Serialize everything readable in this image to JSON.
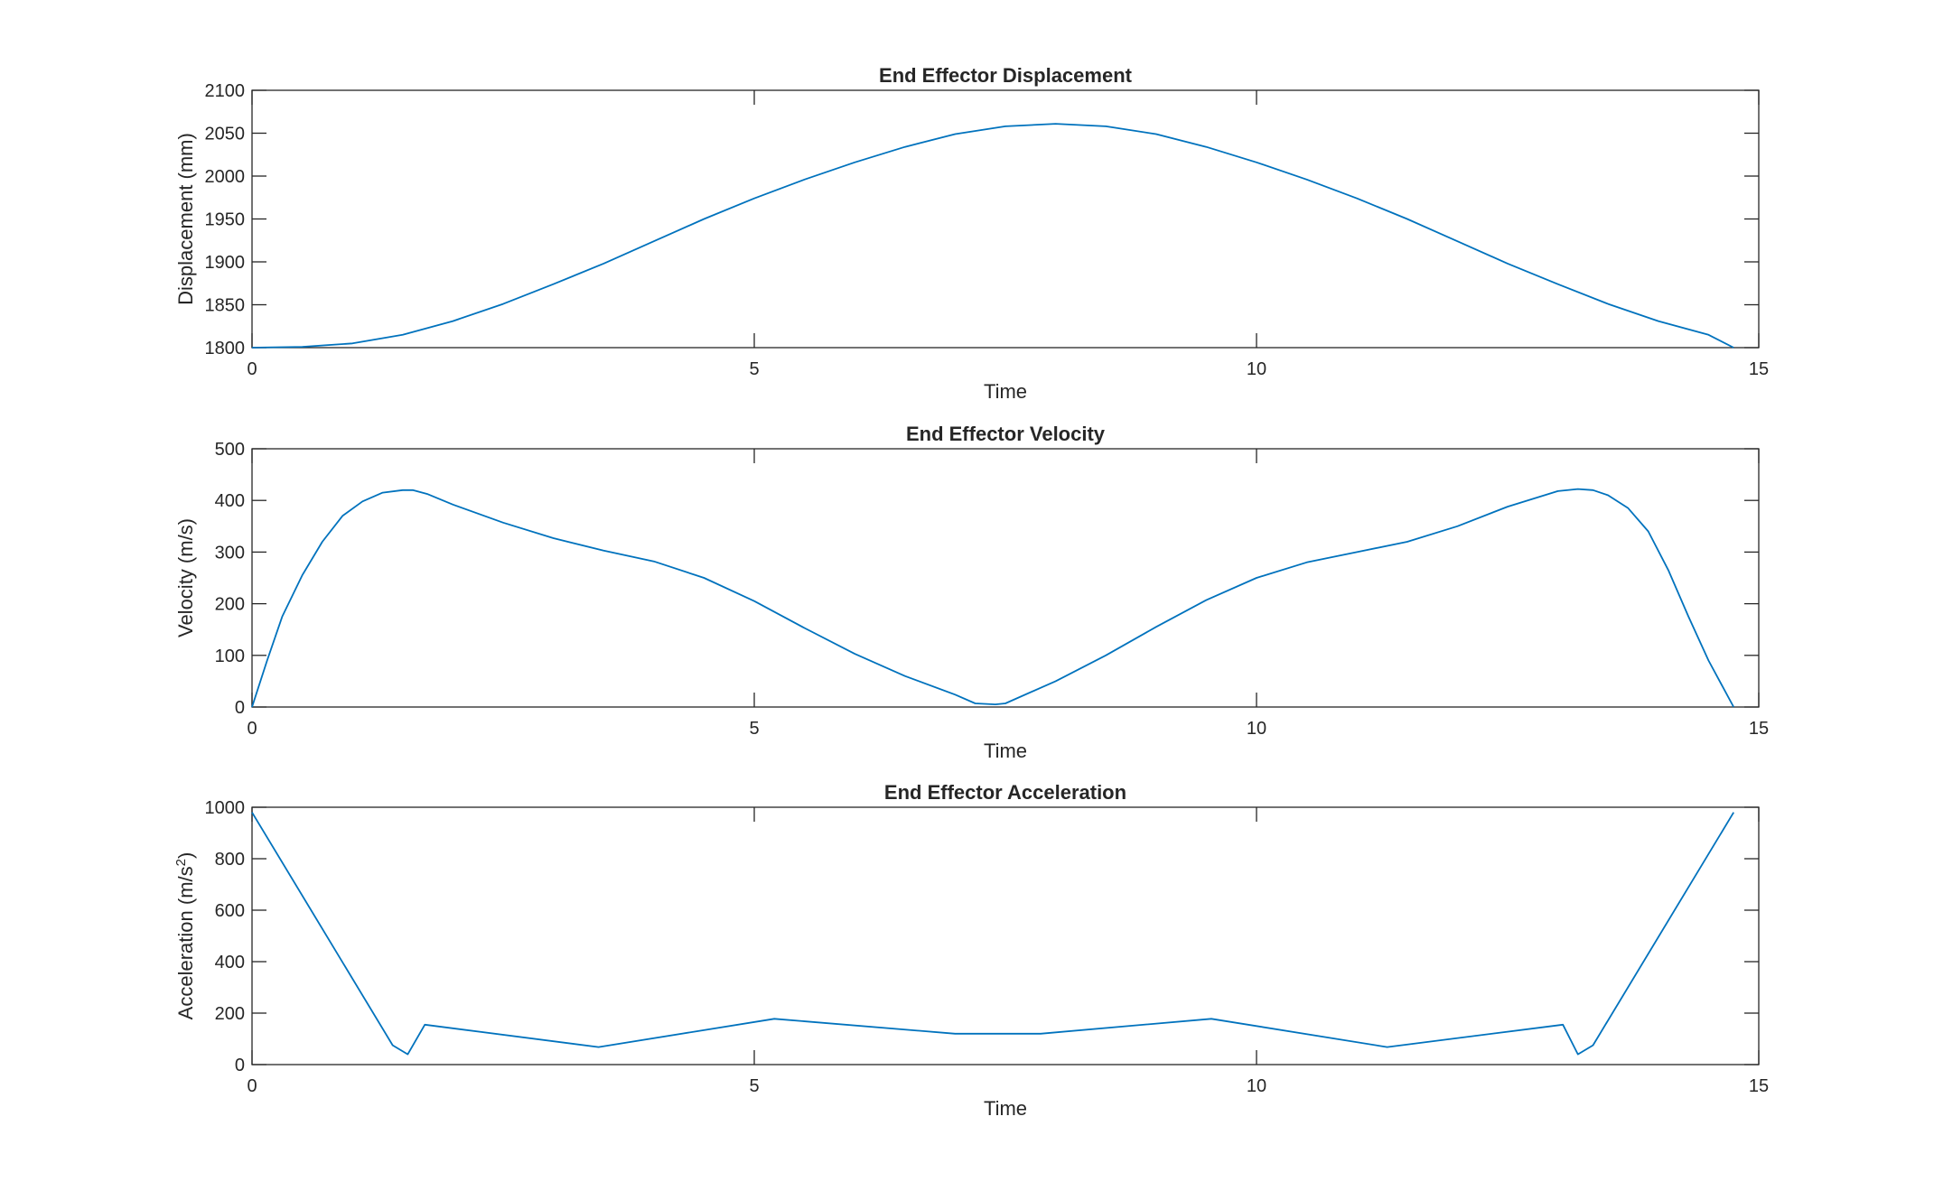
{
  "figure": {
    "line_color": "#0072BD",
    "axis_color": "#262626",
    "background": "#ffffff"
  },
  "chart_data": [
    {
      "type": "line",
      "title": "End Effector Displacement",
      "xlabel": "Time",
      "ylabel": "Displacement (mm)",
      "ylabel_sup": "",
      "ylabel_tail": "",
      "xlim": [
        0,
        15
      ],
      "ylim": [
        1800,
        2100
      ],
      "xticks": [
        0,
        5,
        10,
        15
      ],
      "yticks": [
        1800,
        1850,
        1900,
        1950,
        2000,
        2050,
        2100
      ],
      "grid": false,
      "series": [
        {
          "x": [
            0,
            0.5,
            1.0,
            1.5,
            2.0,
            2.5,
            3.0,
            3.5,
            4.0,
            4.5,
            5.0,
            5.5,
            6.0,
            6.5,
            7.0,
            7.5,
            8.0,
            8.5,
            9.0,
            9.5,
            10.0,
            10.5,
            11.0,
            11.5,
            12.0,
            12.5,
            13.0,
            13.5,
            14.0,
            14.5,
            14.75
          ],
          "y": [
            1800,
            1801,
            1805,
            1815,
            1831,
            1851,
            1874,
            1898,
            1924,
            1950,
            1974,
            1996,
            2016,
            2034,
            2049,
            2058,
            2061,
            2058,
            2049,
            2034,
            2016,
            1996,
            1974,
            1950,
            1924,
            1898,
            1874,
            1851,
            1831,
            1815,
            1800
          ]
        }
      ]
    },
    {
      "type": "line",
      "title": "End Effector Velocity",
      "xlabel": "Time",
      "ylabel": "Velocity (m/s)",
      "ylabel_sup": "",
      "ylabel_tail": "",
      "xlim": [
        0,
        15
      ],
      "ylim": [
        0,
        500
      ],
      "xticks": [
        0,
        5,
        10,
        15
      ],
      "yticks": [
        0,
        100,
        200,
        300,
        400,
        500
      ],
      "grid": false,
      "series": [
        {
          "x": [
            0,
            0.15,
            0.3,
            0.5,
            0.7,
            0.9,
            1.1,
            1.3,
            1.5,
            1.6,
            1.75,
            2.0,
            2.5,
            3.0,
            3.5,
            4.0,
            4.5,
            5.0,
            5.5,
            6.0,
            6.5,
            7.0,
            7.2,
            7.4,
            7.5,
            8.0,
            8.5,
            9.0,
            9.5,
            10.0,
            10.5,
            11.0,
            11.5,
            12.0,
            12.5,
            13.0,
            13.2,
            13.35,
            13.5,
            13.7,
            13.9,
            14.1,
            14.3,
            14.5,
            14.75
          ],
          "y": [
            0,
            90,
            175,
            255,
            320,
            370,
            398,
            415,
            420,
            420,
            412,
            392,
            357,
            327,
            303,
            282,
            250,
            205,
            153,
            103,
            60,
            24,
            7,
            5,
            7,
            50,
            100,
            155,
            207,
            250,
            280,
            300,
            320,
            350,
            388,
            418,
            422,
            420,
            410,
            385,
            340,
            265,
            175,
            90,
            0
          ]
        }
      ]
    },
    {
      "type": "line",
      "title": "End Effector Acceleration",
      "xlabel": "Time",
      "ylabel": "Acceleration (m/s",
      "ylabel_sup": "2",
      "ylabel_tail": ")",
      "xlim": [
        0,
        15
      ],
      "ylim": [
        0,
        1000
      ],
      "xticks": [
        0,
        5,
        10,
        15
      ],
      "yticks": [
        0,
        200,
        400,
        600,
        800,
        1000
      ],
      "grid": false,
      "series": [
        {
          "x": [
            0,
            1.4,
            1.55,
            1.72,
            3.45,
            5.2,
            7.0,
            7.85,
            9.55,
            11.3,
            13.05,
            13.2,
            13.35,
            14.75
          ],
          "y": [
            980,
            75,
            40,
            155,
            68,
            178,
            120,
            120,
            178,
            68,
            155,
            40,
            75,
            980
          ]
        }
      ]
    }
  ]
}
